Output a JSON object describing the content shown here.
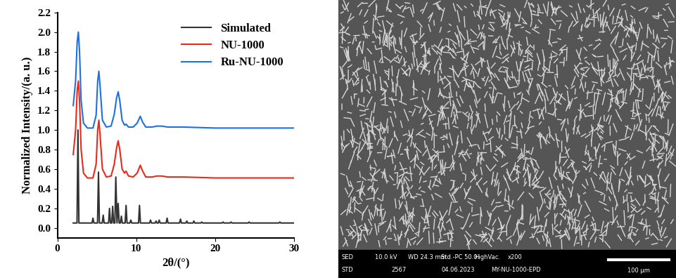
{
  "chart_data": {
    "type": "line",
    "xlabel": "2θ/(°)",
    "ylabel": "Normalized Intensity/(a. u.)",
    "xlim": [
      0,
      30
    ],
    "xticks": [
      0,
      10,
      20,
      30
    ],
    "ylim": [
      -0.1,
      2.2
    ],
    "yticks": [
      {
        "value": 0.0,
        "label": "0.0"
      },
      {
        "value": 0.2,
        "label": "0.2"
      },
      {
        "value": 0.4,
        "label": "0.4"
      },
      {
        "value": 0.6,
        "label": "0.6"
      },
      {
        "value": 0.8,
        "label": "0.8"
      },
      {
        "value": 1.0,
        "label": "1.0"
      },
      {
        "value": 1.2,
        "label": "1.2"
      },
      {
        "value": 1.4,
        "label": "1.4"
      },
      {
        "value": 1.6,
        "label": "1.6"
      },
      {
        "value": 1.8,
        "label": "1.8"
      },
      {
        "value": 2.0,
        "label": "2.0"
      },
      {
        "value": 2.2,
        "label": "2.2"
      }
    ],
    "legend": "upper right",
    "series": [
      {
        "name": "Simulated",
        "color": "#333333",
        "x": [
          2.0,
          2.48,
          2.6,
          2.72,
          4.38,
          4.5,
          4.62,
          5.08,
          5.2,
          5.32,
          5.68,
          5.8,
          5.92,
          6.48,
          6.6,
          6.72,
          6.88,
          7.0,
          7.12,
          7.28,
          7.4,
          7.55,
          7.7,
          7.82,
          7.98,
          8.1,
          8.22,
          8.58,
          8.7,
          8.82,
          9.18,
          9.3,
          9.42,
          10.28,
          10.4,
          10.52,
          11.68,
          11.8,
          11.92,
          12.38,
          12.5,
          12.62,
          12.78,
          12.9,
          13.02,
          13.78,
          13.9,
          14.02,
          15.48,
          15.6,
          15.72,
          16.28,
          16.4,
          16.52,
          17.18,
          17.3,
          17.42,
          18.18,
          18.3,
          18.42,
          20.88,
          21.0,
          21.12,
          21.88,
          22.0,
          22.12,
          24.18,
          24.3,
          24.42,
          28.08,
          28.2,
          28.32,
          30.0
        ],
        "values": [
          0.05,
          0.05,
          1.0,
          0.05,
          0.05,
          0.1,
          0.05,
          0.05,
          0.57,
          0.05,
          0.05,
          0.13,
          0.05,
          0.05,
          0.2,
          0.05,
          0.05,
          0.22,
          0.05,
          0.05,
          0.52,
          0.05,
          0.25,
          0.05,
          0.05,
          0.12,
          0.05,
          0.05,
          0.23,
          0.05,
          0.05,
          0.08,
          0.05,
          0.05,
          0.23,
          0.05,
          0.05,
          0.08,
          0.05,
          0.05,
          0.07,
          0.05,
          0.05,
          0.08,
          0.05,
          0.05,
          0.1,
          0.05,
          0.05,
          0.09,
          0.05,
          0.05,
          0.07,
          0.05,
          0.05,
          0.07,
          0.05,
          0.05,
          0.06,
          0.05,
          0.05,
          0.06,
          0.05,
          0.05,
          0.06,
          0.05,
          0.05,
          0.06,
          0.05,
          0.05,
          0.06,
          0.05,
          0.05
        ]
      },
      {
        "name": "NU-1000",
        "color": "#e8291c",
        "x": [
          2.0,
          2.3,
          2.5,
          2.65,
          2.8,
          3.0,
          3.3,
          3.8,
          4.5,
          4.9,
          5.1,
          5.25,
          5.4,
          5.7,
          6.2,
          6.8,
          7.2,
          7.5,
          7.7,
          7.9,
          8.2,
          8.5,
          8.7,
          9.0,
          9.6,
          10.1,
          10.5,
          10.8,
          11.2,
          12.0,
          12.6,
          13.2,
          14.0,
          16.0,
          20.0,
          25.0,
          30.0
        ],
        "values": [
          0.75,
          1.0,
          1.4,
          1.5,
          1.3,
          0.8,
          0.56,
          0.51,
          0.51,
          0.65,
          1.0,
          1.1,
          0.95,
          0.6,
          0.52,
          0.53,
          0.65,
          0.82,
          0.89,
          0.8,
          0.6,
          0.56,
          0.58,
          0.53,
          0.52,
          0.56,
          0.64,
          0.58,
          0.52,
          0.52,
          0.53,
          0.53,
          0.52,
          0.52,
          0.51,
          0.51,
          0.51
        ]
      },
      {
        "name": "Ru-NU-1000",
        "color": "#1f6fe0",
        "x": [
          2.0,
          2.3,
          2.5,
          2.65,
          2.8,
          3.0,
          3.3,
          3.8,
          4.5,
          4.9,
          5.1,
          5.25,
          5.4,
          5.7,
          6.2,
          6.8,
          7.2,
          7.5,
          7.7,
          7.9,
          8.2,
          8.5,
          8.7,
          9.0,
          9.6,
          10.1,
          10.5,
          10.8,
          11.2,
          12.0,
          12.6,
          13.2,
          14.0,
          16.0,
          20.0,
          25.0,
          30.0
        ],
        "values": [
          1.25,
          1.5,
          1.9,
          2.0,
          1.8,
          1.3,
          1.07,
          1.02,
          1.02,
          1.15,
          1.5,
          1.6,
          1.45,
          1.1,
          1.03,
          1.04,
          1.16,
          1.33,
          1.39,
          1.3,
          1.1,
          1.05,
          1.06,
          1.03,
          1.03,
          1.07,
          1.14,
          1.08,
          1.03,
          1.03,
          1.04,
          1.04,
          1.03,
          1.03,
          1.02,
          1.02,
          1.02
        ]
      }
    ]
  },
  "sem_image": {
    "info_bar": [
      [
        "SED",
        "10.0 kV",
        "WD 24.3 mm",
        "Std.-PC 50.0",
        "HighVac.",
        "x200"
      ],
      [
        "STD",
        "2567",
        "04.06.2023",
        "MY-NU-1000-EPD"
      ]
    ],
    "scale_bar": "100 μm"
  }
}
